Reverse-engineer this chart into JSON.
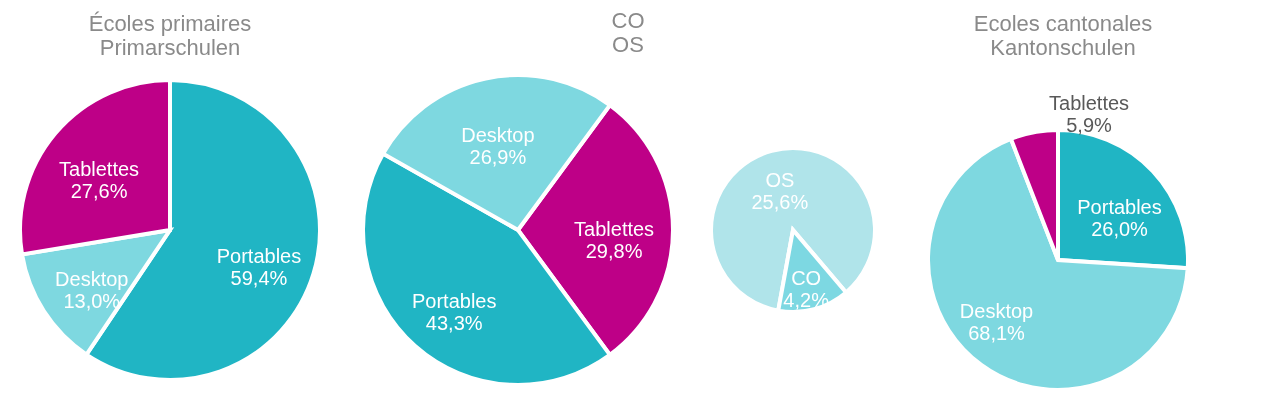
{
  "chart_data": [
    {
      "type": "pie",
      "title": "Écoles primaires\nPrimarschulen",
      "categories": [
        "Portables",
        "Desktop",
        "Tablettes"
      ],
      "values": [
        59.4,
        13.0,
        27.6
      ],
      "value_labels": [
        "59,4%",
        "13,0%",
        "27,6%"
      ],
      "colors": [
        "#20b5c4",
        "#7ed8e0",
        "#be0087"
      ]
    },
    {
      "type": "pie",
      "title": "CO\nOS",
      "categories": [
        "Tablettes",
        "Portables",
        "Desktop"
      ],
      "values": [
        29.8,
        43.3,
        26.9
      ],
      "value_labels": [
        "29,8%",
        "43,3%",
        "26,9%"
      ],
      "colors": [
        "#be0087",
        "#20b5c4",
        "#7ed8e0"
      ]
    },
    {
      "type": "pie",
      "categories": [
        "OS",
        "CO"
      ],
      "values": [
        25.6,
        4.2
      ],
      "value_labels": [
        "25,6%",
        "4,2%"
      ],
      "colors": [
        "#b0e4ea",
        "#7dd8e2"
      ]
    },
    {
      "type": "pie",
      "title": "Ecoles cantonales\nKantonschulen",
      "categories": [
        "Portables",
        "Desktop",
        "Tablettes"
      ],
      "values": [
        26.0,
        68.1,
        5.9
      ],
      "value_labels": [
        "26,0%",
        "68,1%",
        "5,9%"
      ],
      "colors": [
        "#20b5c4",
        "#7ed8e0",
        "#be0087"
      ]
    }
  ]
}
